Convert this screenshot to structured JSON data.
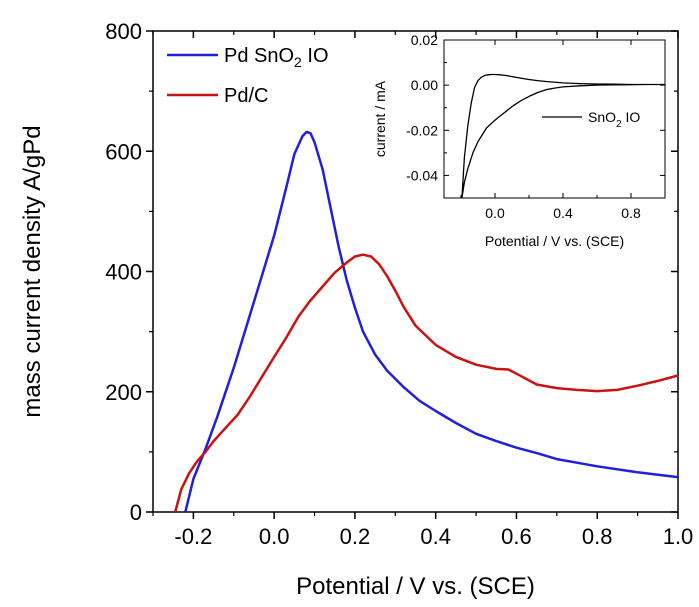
{
  "chart_data": [
    {
      "type": "line",
      "xlabel": "Potential / V vs. (SCE)",
      "ylabel": "mass current density A/gPd",
      "xlim": [
        -0.3,
        1.0
      ],
      "ylim": [
        0,
        800
      ],
      "x_ticks": [
        "-0.2",
        "0.0",
        "0.2",
        "0.4",
        "0.6",
        "0.8",
        "1.0"
      ],
      "y_ticks": [
        "0",
        "200",
        "400",
        "600",
        "800"
      ],
      "legend": {
        "placement": "top-left"
      },
      "series": [
        {
          "name": "Pd SnO2 IO",
          "name_parts": {
            "main": "Pd SnO",
            "sub": "2",
            "tail": " IO"
          },
          "color": "#1f1fe0",
          "x": [
            -0.22,
            -0.2,
            -0.17,
            -0.14,
            -0.1,
            -0.05,
            0.0,
            0.03,
            0.05,
            0.07,
            0.08,
            0.09,
            0.1,
            0.12,
            0.14,
            0.16,
            0.18,
            0.2,
            0.22,
            0.25,
            0.28,
            0.32,
            0.36,
            0.4,
            0.45,
            0.5,
            0.55,
            0.6,
            0.65,
            0.7,
            0.75,
            0.8,
            0.85,
            0.9,
            0.95,
            1.0
          ],
          "y": [
            0,
            55,
            105,
            160,
            240,
            350,
            460,
            540,
            595,
            625,
            632,
            630,
            615,
            570,
            505,
            440,
            385,
            340,
            300,
            262,
            235,
            208,
            185,
            168,
            148,
            130,
            118,
            107,
            98,
            88,
            82,
            76,
            71,
            66,
            62,
            58
          ]
        },
        {
          "name": "Pd/C",
          "color": "#cc1111",
          "x": [
            -0.245,
            -0.23,
            -0.21,
            -0.19,
            -0.17,
            -0.15,
            -0.12,
            -0.09,
            -0.06,
            -0.03,
            0.0,
            0.03,
            0.06,
            0.09,
            0.12,
            0.15,
            0.18,
            0.2,
            0.22,
            0.24,
            0.26,
            0.28,
            0.3,
            0.32,
            0.35,
            0.4,
            0.45,
            0.5,
            0.55,
            0.58,
            0.6,
            0.65,
            0.7,
            0.75,
            0.8,
            0.85,
            0.9,
            0.95,
            1.0
          ],
          "y": [
            0,
            38,
            65,
            85,
            100,
            118,
            140,
            162,
            192,
            225,
            258,
            290,
            325,
            352,
            375,
            398,
            415,
            425,
            428,
            425,
            412,
            392,
            368,
            342,
            310,
            278,
            258,
            245,
            238,
            237,
            230,
            212,
            206,
            203,
            201,
            203,
            210,
            218,
            227
          ]
        }
      ]
    },
    {
      "type": "line",
      "inset": true,
      "xlabel": "Potential / V vs. (SCE)",
      "ylabel": "current / mA",
      "xlim": [
        -0.3,
        1.0
      ],
      "ylim": [
        -0.05,
        0.02
      ],
      "x_ticks": [
        "0.0",
        "0.4",
        "0.8"
      ],
      "y_ticks": [
        "0.02",
        "0.00",
        "-0.02",
        "-0.04"
      ],
      "legend": {
        "placement": "right"
      },
      "series": [
        {
          "name": "SnO2 IO",
          "name_parts": {
            "main": "SnO",
            "sub": "2",
            "tail": " IO"
          },
          "color": "#000000",
          "x": [
            -0.195,
            -0.18,
            -0.16,
            -0.14,
            -0.12,
            -0.1,
            -0.08,
            -0.06,
            -0.04,
            -0.02,
            0.0,
            0.03,
            0.06,
            0.1,
            0.15,
            0.2,
            0.25,
            0.3,
            0.4,
            0.5,
            0.6,
            0.7,
            0.8,
            0.9,
            1.0,
            0.9,
            0.8,
            0.7,
            0.6,
            0.5,
            0.4,
            0.35,
            0.3,
            0.25,
            0.2,
            0.15,
            0.1,
            0.05,
            0.0,
            -0.05,
            -0.1,
            -0.13,
            -0.16,
            -0.18,
            -0.195
          ],
          "y": [
            -0.05,
            -0.032,
            -0.018,
            -0.008,
            -0.001,
            0.002,
            0.0035,
            0.0043,
            0.0046,
            0.0047,
            0.0047,
            0.0046,
            0.0043,
            0.0038,
            0.0031,
            0.0025,
            0.002,
            0.0016,
            0.001,
            0.0007,
            0.0005,
            0.0004,
            0.0003,
            0.0003,
            0.0003,
            0.0003,
            0.0002,
            0.0001,
            0.0,
            -0.0003,
            -0.0008,
            -0.0013,
            -0.002,
            -0.0033,
            -0.005,
            -0.007,
            -0.0095,
            -0.0125,
            -0.0155,
            -0.019,
            -0.025,
            -0.03,
            -0.037,
            -0.043,
            -0.05
          ]
        }
      ]
    }
  ]
}
